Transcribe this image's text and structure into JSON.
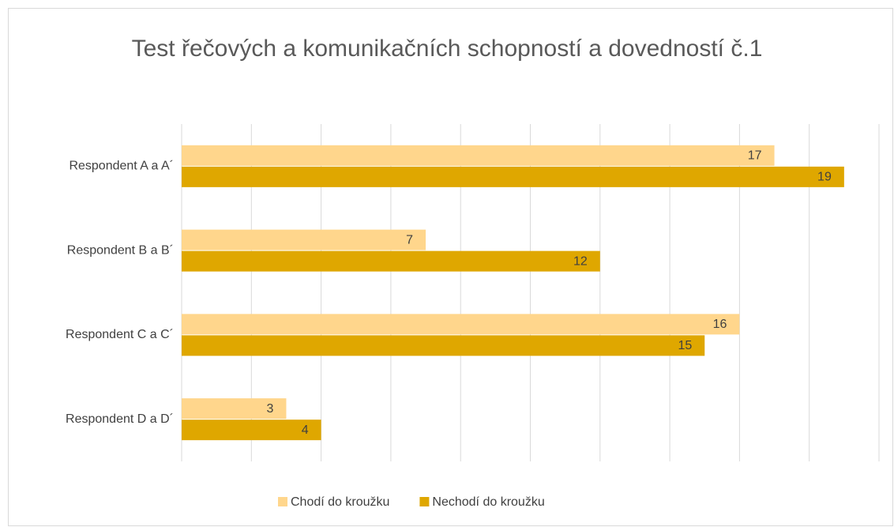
{
  "chart_data": {
    "type": "bar",
    "orientation": "horizontal",
    "title": "Test řečových a komunikačních schopností a dovedností č.1",
    "categories": [
      "Respondent A a A´",
      "Respondent B a B´",
      "Respondent C a C´",
      "Respondent D a D´"
    ],
    "series": [
      {
        "name": "Chodí do kroužku",
        "color": "#ffd68c",
        "values": [
          17,
          7,
          16,
          3
        ]
      },
      {
        "name": "Nechodí do kroužku",
        "color": "#dfa700",
        "values": [
          19,
          12,
          15,
          4
        ]
      }
    ],
    "xlim": [
      0,
      20
    ],
    "xticks": [
      0,
      2,
      4,
      6,
      8,
      10,
      12,
      14,
      16,
      18,
      20
    ],
    "grid": true,
    "legend": "bottom"
  }
}
